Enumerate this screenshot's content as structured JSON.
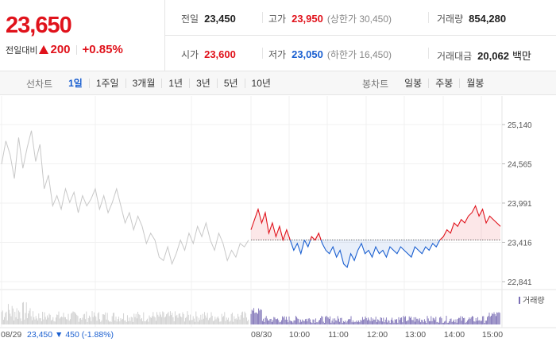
{
  "summary": {
    "current_price": "23,650",
    "change_label": "전일대비",
    "change_value": "200",
    "change_pct": "+0.85%",
    "prev_close": {
      "label": "전일",
      "value": "23,450"
    },
    "open": {
      "label": "시가",
      "value": "23,600"
    },
    "high": {
      "label": "고가",
      "value": "23,950",
      "limit_label": "상한가",
      "limit_value": "30,450"
    },
    "low": {
      "label": "저가",
      "value": "23,050",
      "limit_label": "하한가",
      "limit_value": "16,450"
    },
    "volume": {
      "label": "거래량",
      "value": "854,280"
    },
    "turnover": {
      "label": "거래대금",
      "value": "20,062",
      "unit": "백만"
    }
  },
  "line_chart_tabs": {
    "label": "선차트",
    "items": [
      "1일",
      "1주일",
      "3개월",
      "1년",
      "3년",
      "5년",
      "10년"
    ],
    "active": "1일"
  },
  "candle_chart_tabs": {
    "label": "봉차트",
    "items": [
      "일봉",
      "주봉",
      "월봉"
    ]
  },
  "colors": {
    "up": "#e0121b",
    "down": "#1a5fd0",
    "prev_day_line": "#c8c8c8",
    "volume_prev": "#cfcfcf",
    "volume_today": "#7b6fb5"
  },
  "chart_data": {
    "type": "line",
    "y_ticks": [
      "25,140",
      "24,565",
      "23,991",
      "23,416",
      "22,841"
    ],
    "y_tick_values": [
      25140,
      24565,
      23991,
      23416,
      22841
    ],
    "ylim": [
      22841,
      25140
    ],
    "reference_price": 23450,
    "x_labels": {
      "prev_date": "08/29",
      "today_date": "08/30",
      "times": [
        "10:00",
        "11:00",
        "12:00",
        "13:00",
        "14:00",
        "15:00"
      ]
    },
    "prev_day_note": {
      "close": "23,450",
      "arrow": "▼",
      "change": "450",
      "pct": "(-1.88%)"
    },
    "volume_legend": "거래량",
    "series": [
      {
        "day": "08/29",
        "values": [
          24560,
          24900,
          24700,
          24350,
          24950,
          24500,
          24800,
          25050,
          24600,
          24850,
          24200,
          24400,
          23950,
          24100,
          23900,
          24200,
          24000,
          24150,
          23850,
          24100,
          23950,
          24050,
          24200,
          23900,
          24100,
          23850,
          24000,
          24200,
          23950,
          23700,
          23850,
          23600,
          23800,
          23650,
          23400,
          23550,
          23450,
          23200,
          23150,
          23350,
          23100,
          23250,
          23450,
          23300,
          23550,
          23400,
          23650,
          23500,
          23700,
          23450,
          23300,
          23550,
          23400,
          23150,
          23300,
          23200,
          23400,
          23350,
          23450
        ]
      },
      {
        "day": "08/30",
        "values": [
          23600,
          23750,
          23900,
          23700,
          23850,
          23550,
          23700,
          23500,
          23650,
          23450,
          23600,
          23450,
          23300,
          23400,
          23250,
          23450,
          23350,
          23500,
          23450,
          23550,
          23400,
          23300,
          23250,
          23350,
          23200,
          23300,
          23100,
          23050,
          23250,
          23150,
          23300,
          23400,
          23250,
          23300,
          23200,
          23350,
          23250,
          23300,
          23200,
          23350,
          23300,
          23250,
          23350,
          23300,
          23250,
          23200,
          23350,
          23300,
          23250,
          23350,
          23300,
          23400,
          23350,
          23450,
          23500,
          23600,
          23550,
          23700,
          23650,
          23750,
          23700,
          23800,
          23850,
          23950,
          23800,
          23900,
          23700,
          23800,
          23750,
          23700,
          23650
        ]
      }
    ]
  }
}
